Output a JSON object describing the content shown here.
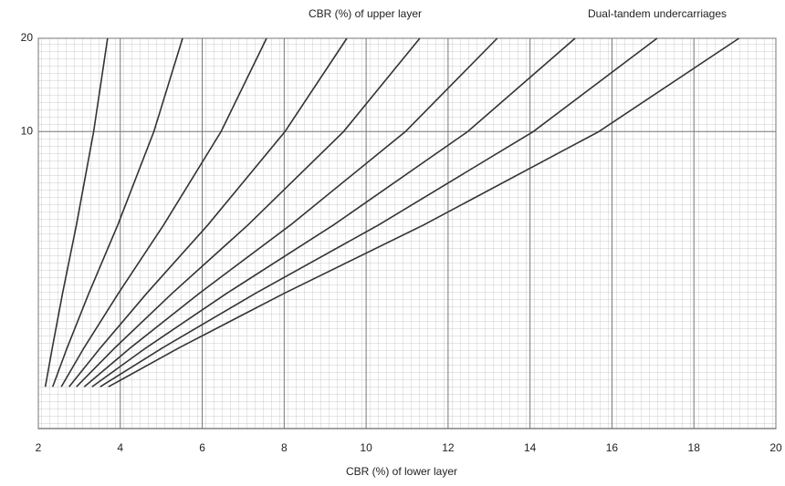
{
  "chart_data": {
    "type": "line",
    "title": "CBR (%) of upper layer",
    "subtitle": "Dual-tandem undercarriages",
    "x_label": "CBR (%) of lower layer",
    "xlim": [
      2,
      20
    ],
    "xticks": [
      2,
      4,
      6,
      8,
      10,
      12,
      14,
      16,
      18,
      20
    ],
    "ylim": [
      1.1,
      20
    ],
    "yticks": [
      10,
      20
    ],
    "log_y": true,
    "grid": true,
    "color": "#333333",
    "series": [
      {
        "x": [
          3.69,
          3.35,
          2.93,
          2.59,
          2.34,
          2.17
        ],
        "values": [
          20,
          10,
          5,
          3,
          2,
          1.5
        ]
      },
      {
        "x": [
          5.52,
          4.82,
          3.94,
          3.23,
          2.7,
          2.35
        ],
        "values": [
          20,
          10,
          5,
          3,
          2,
          1.5
        ]
      },
      {
        "x": [
          7.57,
          6.46,
          5.06,
          3.95,
          3.11,
          2.56
        ],
        "values": [
          20,
          10,
          5,
          3,
          2,
          1.5
        ]
      },
      {
        "x": [
          9.53,
          8.02,
          6.14,
          4.64,
          3.51,
          2.75
        ],
        "values": [
          20,
          10,
          5,
          3,
          2,
          1.5
        ]
      },
      {
        "x": [
          11.31,
          9.45,
          7.12,
          5.26,
          3.86,
          2.93
        ],
        "values": [
          20,
          10,
          5,
          3,
          2,
          1.5
        ]
      },
      {
        "x": [
          13.2,
          10.96,
          8.16,
          5.92,
          4.24,
          3.12
        ],
        "values": [
          20,
          10,
          5,
          3,
          2,
          1.5
        ]
      },
      {
        "x": [
          15.1,
          12.48,
          9.21,
          6.59,
          4.62,
          3.31
        ],
        "values": [
          20,
          10,
          5,
          3,
          2,
          1.5
        ]
      },
      {
        "x": [
          17.1,
          14.08,
          10.31,
          7.29,
          5.02,
          3.51
        ],
        "values": [
          20,
          10,
          5,
          3,
          2,
          1.5
        ]
      },
      {
        "x": [
          19.1,
          15.68,
          11.41,
          7.99,
          5.42,
          3.71
        ],
        "values": [
          20,
          10,
          5,
          3,
          2,
          1.5
        ]
      }
    ]
  }
}
